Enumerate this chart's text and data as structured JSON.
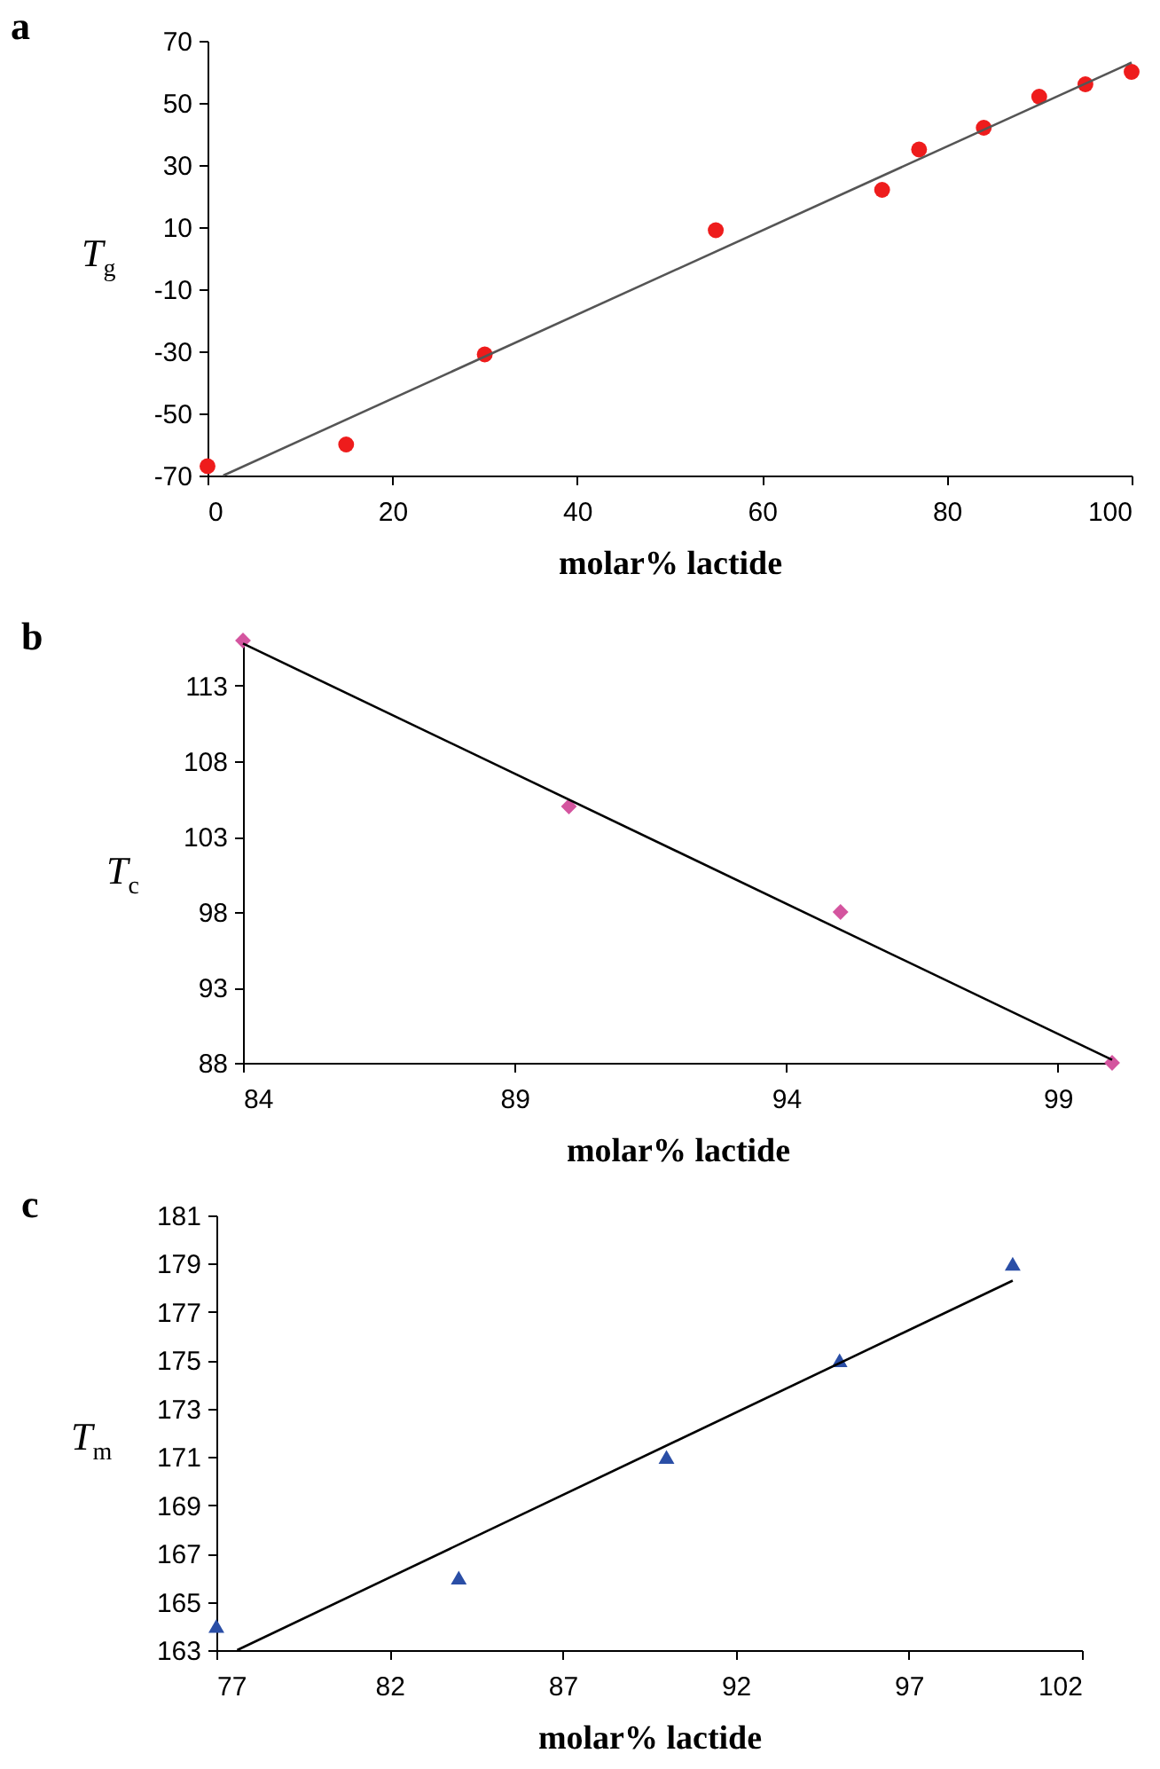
{
  "chart_data": [
    {
      "type": "scatter",
      "title": "a",
      "xlabel": "molar% lactide",
      "ylabel": "T$_{g}$",
      "xlim": [
        0,
        100
      ],
      "xticks": [
        0,
        20,
        40,
        60,
        80,
        100
      ],
      "ylim": [
        -70,
        70
      ],
      "yticks": [
        -70,
        -50,
        -30,
        -10,
        10,
        30,
        50,
        70
      ],
      "series": [
        {
          "type": "scatter",
          "marker": "circle",
          "color": "#ee1c1c",
          "x": [
            0,
            15,
            30,
            55,
            73,
            77,
            84,
            90,
            95,
            100
          ],
          "values": [
            -67,
            -60,
            -31,
            9,
            22,
            35,
            42,
            52,
            56,
            60
          ]
        },
        {
          "type": "line",
          "color": "#555555",
          "x": [
            1.7,
            100
          ],
          "values": [
            -70,
            63
          ]
        }
      ]
    },
    {
      "type": "scatter",
      "title": "b",
      "xlabel": "molar% lactide",
      "ylabel": "T$_{c}$",
      "xlim": [
        84,
        100
      ],
      "xticks": [
        84,
        89,
        94,
        99
      ],
      "ylim": [
        88,
        116
      ],
      "yticks": [
        88,
        93,
        98,
        103,
        108,
        113
      ],
      "series": [
        {
          "type": "scatter",
          "marker": "diamond",
          "color": "#d4559f",
          "x": [
            84,
            90,
            95,
            100
          ],
          "values": [
            116,
            105,
            98,
            88
          ]
        },
        {
          "type": "line",
          "color": "#000000",
          "x": [
            84,
            100
          ],
          "values": [
            115.8,
            88.2
          ]
        }
      ]
    },
    {
      "type": "scatter",
      "title": "c",
      "xlabel": "molar% lactide",
      "ylabel": "T$_{m}$",
      "xlim": [
        77,
        102
      ],
      "xticks": [
        77,
        82,
        87,
        92,
        97,
        102
      ],
      "ylim": [
        163,
        181
      ],
      "yticks": [
        163,
        165,
        167,
        169,
        171,
        173,
        175,
        177,
        179,
        181
      ],
      "series": [
        {
          "type": "scatter",
          "marker": "triangle",
          "color": "#2a4ea6",
          "x": [
            77,
            84,
            90,
            95,
            100
          ],
          "values": [
            164,
            166,
            171,
            175,
            179
          ]
        },
        {
          "type": "line",
          "color": "#000000",
          "x": [
            77.6,
            100
          ],
          "values": [
            163,
            178.3
          ]
        }
      ]
    }
  ]
}
